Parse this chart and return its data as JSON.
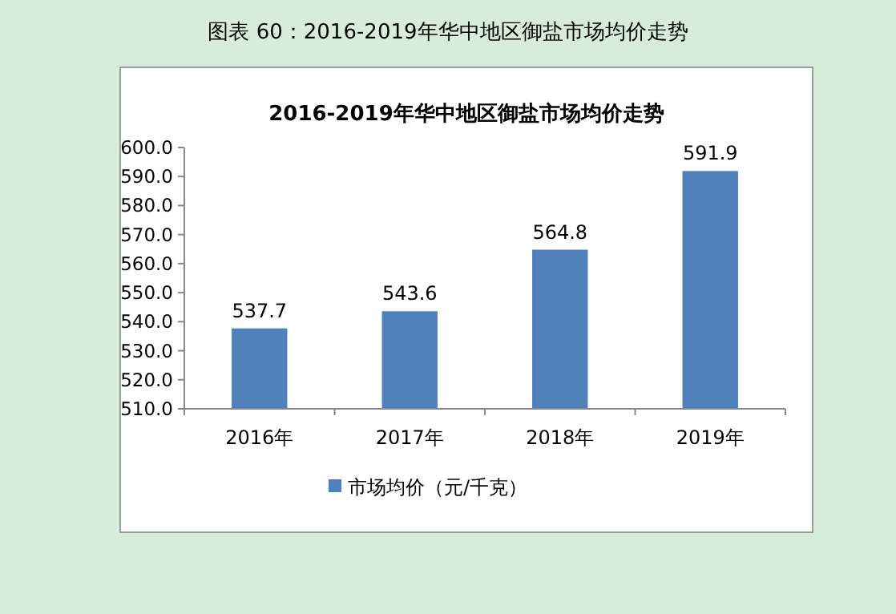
{
  "chart_data": {
    "type": "bar",
    "title": "2016-2019年华中地区御盐市场均价走势",
    "annotations": [
      "图表 60：2016-2019年华中地区御盐市场均价走势"
    ],
    "categories": [
      "2016年",
      "2017年",
      "2018年",
      "2019年"
    ],
    "series": [
      {
        "name": "市场均价（元/千克）",
        "color": "#4f81bd",
        "values": [
          537.7,
          543.6,
          564.8,
          591.9
        ]
      }
    ],
    "ylim": [
      510,
      600
    ],
    "yticks": [
      {
        "value": 510,
        "label": "510.0"
      },
      {
        "value": 520,
        "label": "520.0"
      },
      {
        "value": 530,
        "label": "530.0"
      },
      {
        "value": 540,
        "label": "540.0"
      },
      {
        "value": 550,
        "label": "550.0"
      },
      {
        "value": 560,
        "label": "560.0"
      },
      {
        "value": 570,
        "label": "570.0"
      },
      {
        "value": 580,
        "label": "580.0"
      },
      {
        "value": 590,
        "label": "590.0"
      },
      {
        "value": 600,
        "label": "600.0"
      }
    ],
    "data_labels": true,
    "legend": "bottom"
  }
}
